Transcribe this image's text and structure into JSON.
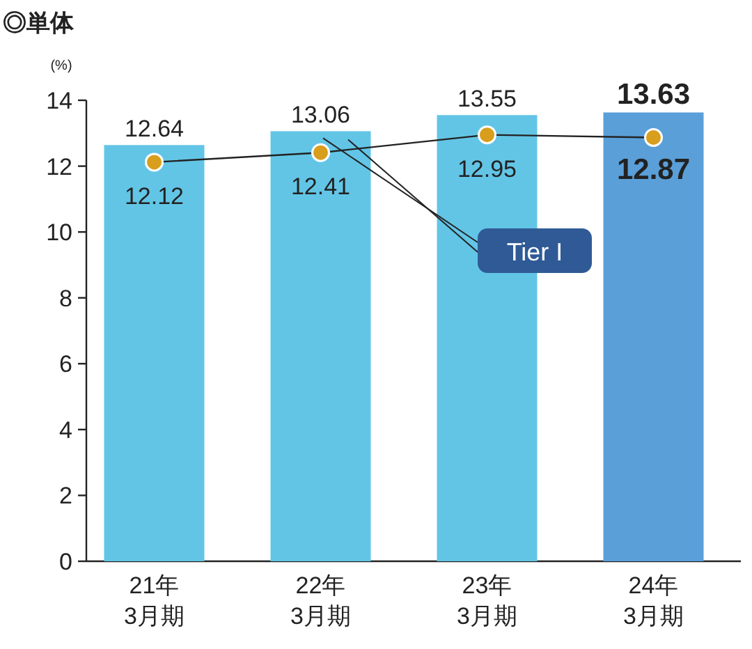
{
  "chart_data": {
    "type": "bar",
    "title": "◎単体",
    "ylabel": "(%)",
    "categories": [
      "21年\n3月期",
      "22年\n3月期",
      "23年\n3月期",
      "24年\n3月期"
    ],
    "ylim": [
      0,
      14
    ],
    "yticks": [
      0,
      2,
      4,
      6,
      8,
      10,
      12,
      14
    ],
    "grid": false,
    "series": [
      {
        "colors": [
          "#63c5e6",
          "#63c5e6",
          "#63c5e6",
          "#5a9fd8"
        ],
        "values": [
          12.64,
          13.06,
          13.55,
          13.63
        ],
        "value_labels": [
          "12.64",
          "13.06",
          "13.55",
          "**13.63**"
        ]
      },
      {
        "type": "line",
        "name": "Tier I",
        "color": "#d89e1c",
        "marker": "circle",
        "line_style": "solid",
        "values": [
          12.12,
          12.41,
          12.95,
          12.87
        ],
        "value_labels": [
          "12.12",
          "12.41",
          "12.95",
          "**12.87**"
        ]
      }
    ]
  }
}
